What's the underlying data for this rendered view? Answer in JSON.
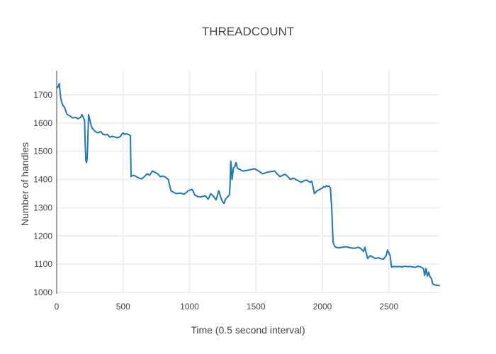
{
  "chart_data": {
    "type": "line",
    "title": "THREADCOUNT",
    "xlabel": "Time (0.5 second interval)",
    "ylabel": "Number of handles",
    "xlim": [
      0,
      2880
    ],
    "ylim": [
      995,
      1785
    ],
    "xticks": [
      0,
      500,
      1000,
      1500,
      2000,
      2500
    ],
    "yticks": [
      1000,
      1100,
      1200,
      1300,
      1400,
      1500,
      1600,
      1700
    ],
    "grid": true,
    "colors": {
      "line": "#1f77b4",
      "grid": "#eeeeee",
      "axis": "#444444"
    },
    "series": [
      {
        "x": [
          0,
          10,
          20,
          25,
          30,
          40,
          50,
          60,
          70,
          80,
          100,
          120,
          140,
          160,
          180,
          190,
          200,
          210,
          215,
          220,
          225,
          230,
          235,
          240,
          250,
          260,
          270,
          290,
          310,
          330,
          350,
          370,
          380,
          390,
          400,
          420,
          440,
          460,
          480,
          490,
          500,
          510,
          520,
          540,
          555,
          560,
          565,
          580,
          600,
          620,
          640,
          660,
          680,
          700,
          720,
          740,
          760,
          780,
          800,
          820,
          840,
          860,
          880,
          900,
          930,
          960,
          990,
          1020,
          1040,
          1060,
          1080,
          1100,
          1120,
          1140,
          1160,
          1180,
          1200,
          1220,
          1240,
          1250,
          1260,
          1270,
          1280,
          1290,
          1300,
          1305,
          1310,
          1315,
          1320,
          1330,
          1340,
          1350,
          1360,
          1380,
          1400,
          1430,
          1460,
          1490,
          1520,
          1550,
          1580,
          1610,
          1640,
          1660,
          1680,
          1700,
          1720,
          1740,
          1760,
          1780,
          1800,
          1820,
          1840,
          1860,
          1880,
          1900,
          1910,
          1920,
          1940,
          1960,
          1980,
          2000,
          2010,
          2020,
          2030,
          2040,
          2050,
          2060,
          2070,
          2080,
          2090,
          2100,
          2120,
          2150,
          2180,
          2210,
          2240,
          2270,
          2290,
          2300,
          2310,
          2320,
          2340,
          2360,
          2380,
          2400,
          2420,
          2440,
          2460,
          2480,
          2490,
          2500,
          2510,
          2520,
          2540,
          2560,
          2580,
          2600,
          2620,
          2640,
          2660,
          2680,
          2700,
          2720,
          2740,
          2760,
          2770,
          2780,
          2790,
          2800,
          2810,
          2820,
          2830,
          2840,
          2850,
          2860,
          2870,
          2880
        ],
        "y": [
          1725,
          1728,
          1740,
          1712,
          1690,
          1670,
          1660,
          1655,
          1640,
          1630,
          1625,
          1618,
          1620,
          1615,
          1620,
          1630,
          1620,
          1610,
          1520,
          1465,
          1460,
          1480,
          1550,
          1630,
          1610,
          1590,
          1580,
          1570,
          1565,
          1570,
          1560,
          1558,
          1560,
          1555,
          1550,
          1553,
          1550,
          1548,
          1552,
          1560,
          1565,
          1560,
          1562,
          1560,
          1555,
          1410,
          1412,
          1415,
          1410,
          1405,
          1402,
          1410,
          1420,
          1415,
          1430,
          1425,
          1420,
          1410,
          1412,
          1408,
          1400,
          1360,
          1355,
          1350,
          1352,
          1348,
          1360,
          1365,
          1345,
          1340,
          1338,
          1340,
          1342,
          1330,
          1350,
          1340,
          1328,
          1360,
          1330,
          1320,
          1315,
          1330,
          1335,
          1340,
          1345,
          1380,
          1465,
          1440,
          1400,
          1440,
          1445,
          1460,
          1440,
          1435,
          1430,
          1432,
          1435,
          1438,
          1430,
          1420,
          1425,
          1428,
          1430,
          1420,
          1410,
          1415,
          1418,
          1410,
          1400,
          1405,
          1400,
          1395,
          1390,
          1395,
          1398,
          1392,
          1390,
          1394,
          1350,
          1360,
          1365,
          1370,
          1375,
          1373,
          1378,
          1375,
          1377,
          1370,
          1300,
          1180,
          1165,
          1160,
          1158,
          1160,
          1162,
          1158,
          1156,
          1160,
          1155,
          1150,
          1145,
          1160,
          1120,
          1130,
          1125,
          1120,
          1123,
          1119,
          1118,
          1130,
          1150,
          1140,
          1130,
          1090,
          1092,
          1091,
          1092,
          1090,
          1093,
          1091,
          1092,
          1090,
          1089,
          1093,
          1090,
          1085,
          1060,
          1085,
          1058,
          1072,
          1055,
          1050,
          1030,
          1028,
          1026,
          1025,
          1025,
          1024
        ]
      }
    ]
  }
}
